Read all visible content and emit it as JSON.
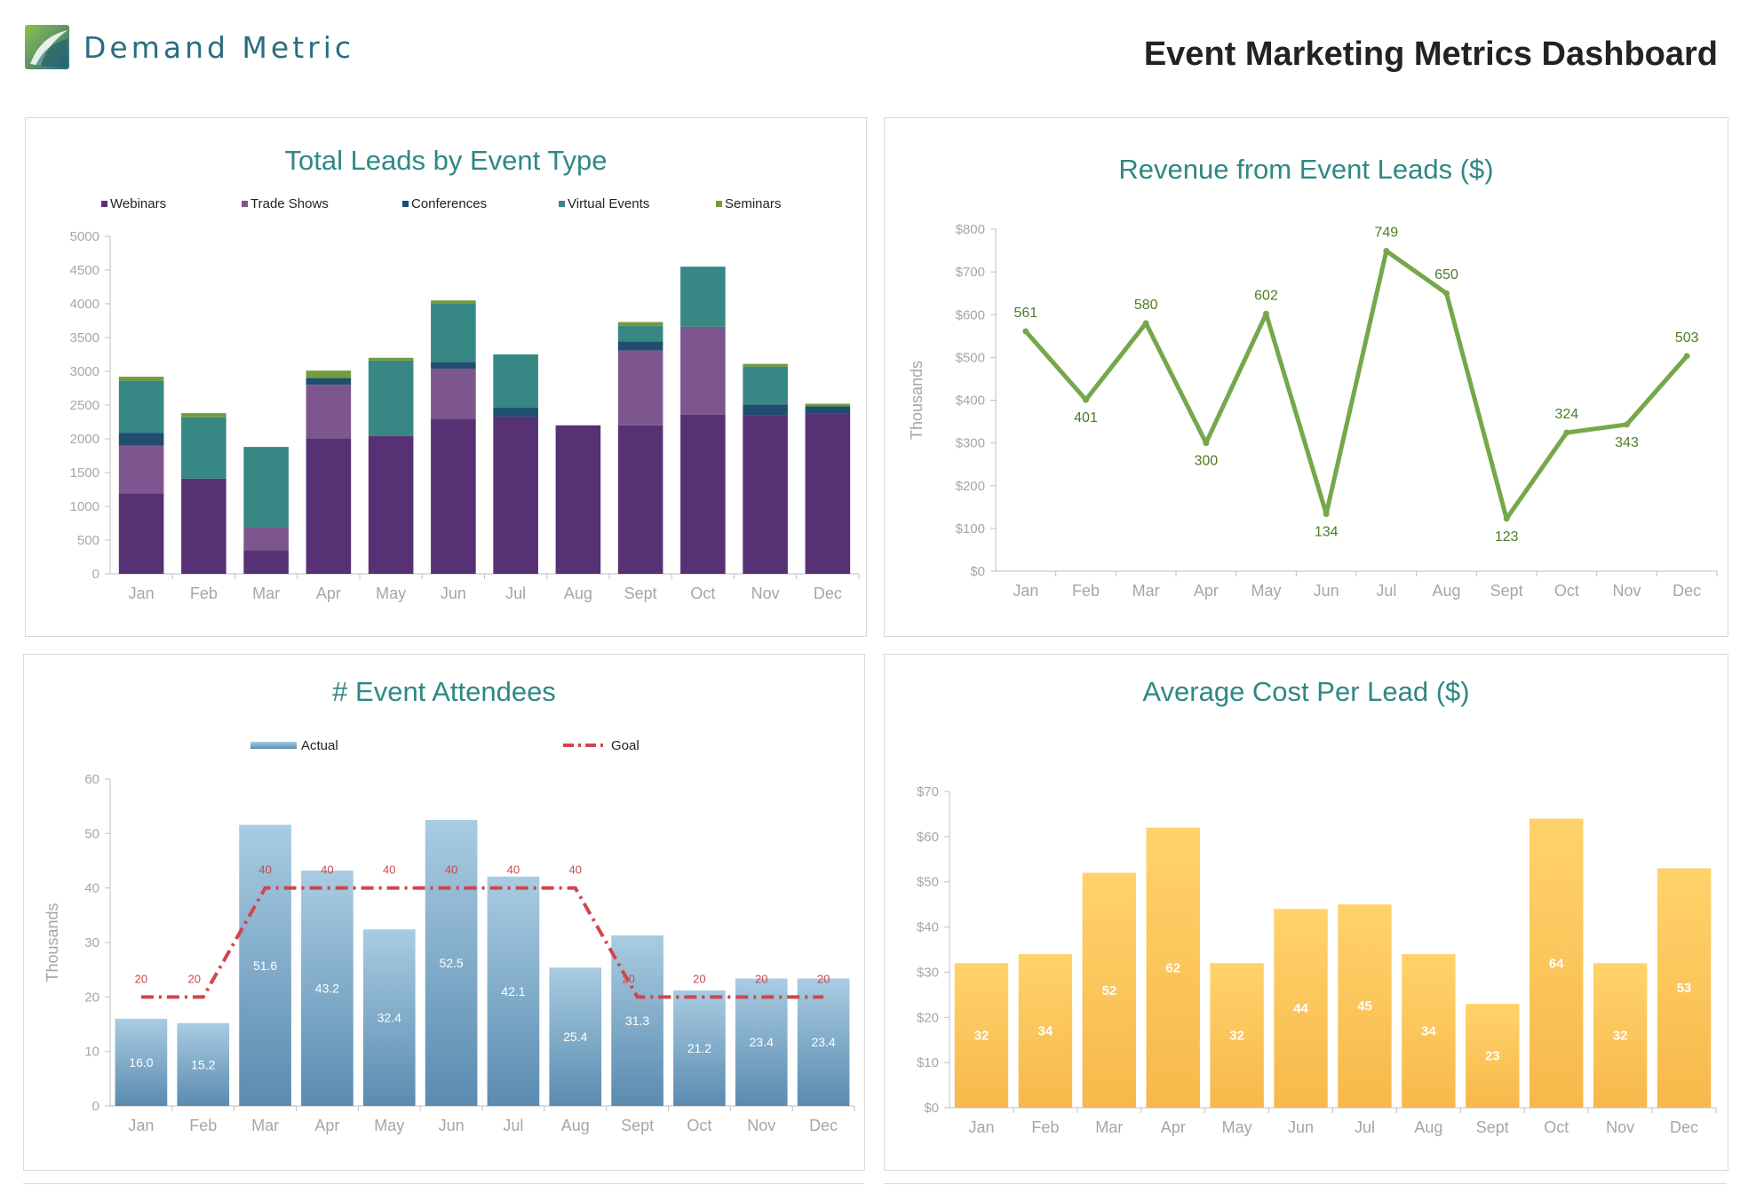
{
  "header": {
    "brand": "Demand Metric",
    "title": "Event Marketing Metrics Dashboard"
  },
  "colors": {
    "title": "#2e8884",
    "webinars": "#563275",
    "trade_shows": "#7e568f",
    "conferences": "#1f4e6e",
    "virtual_events": "#378785",
    "seminars": "#739b3f",
    "revenue_line": "#74a84a",
    "revenue_label": "#4c7d25",
    "attendees_bar_top": "#a8cce2",
    "attendees_bar_bottom": "#5b8bb0",
    "goal_line": "#d2454d",
    "cost_bar_top": "#ffd36a",
    "cost_bar_bottom": "#f7b84b"
  },
  "chart_data": [
    {
      "id": "leads",
      "type": "bar",
      "stacked": true,
      "title": "Total Leads by Event Type",
      "categories": [
        "Jan",
        "Feb",
        "Mar",
        "Apr",
        "May",
        "Jun",
        "Jul",
        "Aug",
        "Sept",
        "Oct",
        "Nov",
        "Dec"
      ],
      "series": [
        {
          "name": "Webinars",
          "values": [
            1190,
            1410,
            350,
            2010,
            2040,
            2300,
            2330,
            2200,
            2200,
            2360,
            2350,
            2380
          ]
        },
        {
          "name": "Trade Shows",
          "values": [
            710,
            0,
            340,
            790,
            0,
            740,
            0,
            0,
            1110,
            1300,
            0,
            0
          ]
        },
        {
          "name": "Conferences",
          "values": [
            190,
            0,
            0,
            100,
            0,
            100,
            130,
            0,
            130,
            0,
            160,
            100
          ]
        },
        {
          "name": "Virtual Events",
          "values": [
            770,
            910,
            1190,
            0,
            1120,
            870,
            790,
            0,
            230,
            890,
            560,
            0
          ]
        },
        {
          "name": "Seminars",
          "values": [
            60,
            60,
            0,
            110,
            40,
            40,
            0,
            0,
            60,
            0,
            40,
            40
          ]
        }
      ],
      "ylim": [
        0,
        5000
      ],
      "yticks": [
        "0",
        "500",
        "1000",
        "1500",
        "2000",
        "2500",
        "3000",
        "3500",
        "4000",
        "4500",
        "5000"
      ],
      "legend": "top"
    },
    {
      "id": "revenue",
      "type": "line",
      "title": "Revenue from Event Leads ($)",
      "ylabel": "Thousands",
      "categories": [
        "Jan",
        "Feb",
        "Mar",
        "Apr",
        "May",
        "Jun",
        "Jul",
        "Aug",
        "Sept",
        "Oct",
        "Nov",
        "Dec"
      ],
      "values": [
        561,
        401,
        580,
        300,
        602,
        134,
        749,
        650,
        123,
        324,
        343,
        503
      ],
      "data_labels": [
        "561",
        "401",
        "580",
        "300",
        "602",
        "134",
        "749",
        "650",
        "123",
        "324",
        "343",
        "503"
      ],
      "ylim": [
        0,
        800
      ],
      "yticks": [
        "$0",
        "$100",
        "$200",
        "$300",
        "$400",
        "$500",
        "$600",
        "$700",
        "$800"
      ]
    },
    {
      "id": "attendees",
      "type": "bar",
      "title": "# Event Attendees",
      "ylabel": "Thousands",
      "categories": [
        "Jan",
        "Feb",
        "Mar",
        "Apr",
        "May",
        "Jun",
        "Jul",
        "Aug",
        "Sept",
        "Oct",
        "Nov",
        "Dec"
      ],
      "series": [
        {
          "name": "Actual",
          "values": [
            16.0,
            15.2,
            51.6,
            43.2,
            32.4,
            52.5,
            42.1,
            25.4,
            31.3,
            21.2,
            23.4,
            23.4
          ],
          "data_labels": [
            "16.0",
            "15.2",
            "51.6",
            "43.2",
            "32.4",
            "52.5",
            "42.1",
            "25.4",
            "31.3",
            "21.2",
            "23.4",
            "23.4"
          ]
        },
        {
          "name": "Goal",
          "values": [
            20,
            20,
            40,
            40,
            40,
            40,
            40,
            40,
            20,
            20,
            20,
            20
          ],
          "data_labels": [
            "20",
            "20",
            "40",
            "40",
            "40",
            "40",
            "40",
            "40",
            "20",
            "20",
            "20",
            "20"
          ]
        }
      ],
      "ylim": [
        0,
        60
      ],
      "yticks": [
        "0",
        "10",
        "20",
        "30",
        "40",
        "50",
        "60"
      ],
      "legend": "top"
    },
    {
      "id": "cost",
      "type": "bar",
      "title": "Average Cost Per Lead ($)",
      "categories": [
        "Jan",
        "Feb",
        "Mar",
        "Apr",
        "May",
        "Jun",
        "Jul",
        "Aug",
        "Sept",
        "Oct",
        "Nov",
        "Dec"
      ],
      "values": [
        32,
        34,
        52,
        62,
        32,
        44,
        45,
        34,
        23,
        64,
        32,
        53
      ],
      "data_labels": [
        "32",
        "34",
        "52",
        "62",
        "32",
        "44",
        "45",
        "34",
        "23",
        "64",
        "32",
        "53"
      ],
      "ylim": [
        0,
        70
      ],
      "yticks": [
        "$0",
        "$10",
        "$20",
        "$30",
        "$40",
        "$50",
        "$60",
        "$70"
      ]
    }
  ]
}
